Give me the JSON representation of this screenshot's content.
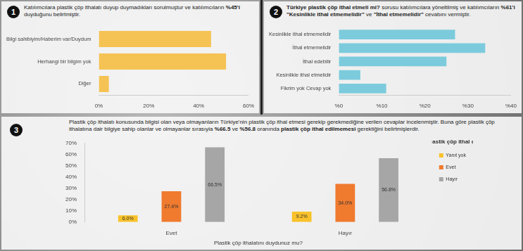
{
  "panels": [
    {
      "number": "1",
      "text": [
        {
          "text": "Katılımcılara plastik çöp ithalatı duyup duymadıkları sorulmuştur ve katılımcıların "
        },
        {
          "text": "%45'i",
          "bold": true
        },
        {
          "text": " duyduğunu belirtmiştir."
        }
      ]
    },
    {
      "number": "2",
      "text": [
        {
          "text": "Türkiye plastik çöp ithal etmeli mi?",
          "bold": true
        },
        {
          "text": " sorusu katılımcılara yöneltilmiş ve katılımcıların "
        },
        {
          "text": "%61'i",
          "bold": true
        },
        {
          "text": " "
        },
        {
          "text": "\"Kesinlikle ithal etmemelidir\"",
          "bold": true
        },
        {
          "text": " ve "
        },
        {
          "text": "\"İthal etmemelidir\"",
          "bold": true
        },
        {
          "text": " cevabını vermiştir."
        }
      ]
    },
    {
      "number": "3",
      "text": [
        {
          "text": "Plastik çöp ithalatı konusunda bilgisi olan veya olmayanların Türkiye'nin plastik çöp ithal etmesi gerekip gerekmediğine verilen cevaplar incelenmiştir. Buna göre plastik çöp ithalatına dair bilgiye sahip olanlar ve olmayanlar sırasıyla "
        },
        {
          "text": "%66.5",
          "bold": true
        },
        {
          "text": " ve "
        },
        {
          "text": "%56.8",
          "bold": true
        },
        {
          "text": " oranında "
        },
        {
          "text": "plastik çöp ithal edilmemesi",
          "bold": true
        },
        {
          "text": " gerektiğini belirtmişlerdir."
        }
      ]
    }
  ],
  "chart_data": [
    {
      "type": "bar",
      "orientation": "horizontal",
      "categories": [
        "Bilgi sahibiyim/Haberim var/Duydum",
        "Herhangi bir bilgim yok",
        "Diğer"
      ],
      "values": [
        45,
        51,
        4
      ],
      "color": "#f5c254",
      "xlim": [
        0,
        60
      ],
      "xticks": [
        {
          "value": 0,
          "label": "0%"
        },
        {
          "value": 20,
          "label": "20%"
        },
        {
          "value": 40,
          "label": "40%"
        },
        {
          "value": 60,
          "label": "60%"
        }
      ],
      "grid": false
    },
    {
      "type": "bar",
      "orientation": "horizontal",
      "categories": [
        "Kesinlikle ithal etmemelidir",
        "İthal etmemelidir",
        "İthal edebilir",
        "Kesinlikle ithal etmelidir",
        "Fikrim yok Cevap yok"
      ],
      "values": [
        27,
        34,
        25,
        5,
        11
      ],
      "color": "#7ccbdd",
      "xlim": [
        0,
        40
      ],
      "xticks": [
        {
          "value": 0,
          "label": "%0"
        },
        {
          "value": 10,
          "label": "%10"
        },
        {
          "value": 20,
          "label": "%20"
        },
        {
          "value": 30,
          "label": "%30"
        },
        {
          "value": 40,
          "label": "%40"
        }
      ],
      "grid": false
    },
    {
      "type": "bar",
      "categories": [
        "Evet",
        "Hayır"
      ],
      "xlabel": "Plastik çöp ithalatını duydunuz mu?",
      "series": [
        {
          "name": "Yanıt yok",
          "color": "#f9c22b",
          "values": [
            6.0,
            9.2
          ],
          "value_labels": [
            "6.0%",
            "9.2%"
          ]
        },
        {
          "name": "Evet",
          "color": "#f07a2e",
          "values": [
            27.4,
            34.0
          ],
          "value_labels": [
            "27.4%",
            "34.0%"
          ]
        },
        {
          "name": "Hayır",
          "color": "#a6a6a6",
          "values": [
            66.5,
            56.8
          ],
          "value_labels": [
            "66.5%",
            "56.8%"
          ]
        }
      ],
      "ylim": [
        0,
        70
      ],
      "yticks": [
        {
          "value": 0,
          "label": "0%"
        },
        {
          "value": 10,
          "label": "10%"
        },
        {
          "value": 20,
          "label": "20%"
        },
        {
          "value": 30,
          "label": "30%"
        },
        {
          "value": 40,
          "label": "40%"
        },
        {
          "value": 50,
          "label": "50%"
        },
        {
          "value": 60,
          "label": "60%"
        },
        {
          "value": 70,
          "label": "70%"
        }
      ],
      "legend": "right",
      "legend_title": "Türkiye plastik çöp ithal etmeli mi?",
      "data_labels": true,
      "grid": false
    }
  ]
}
